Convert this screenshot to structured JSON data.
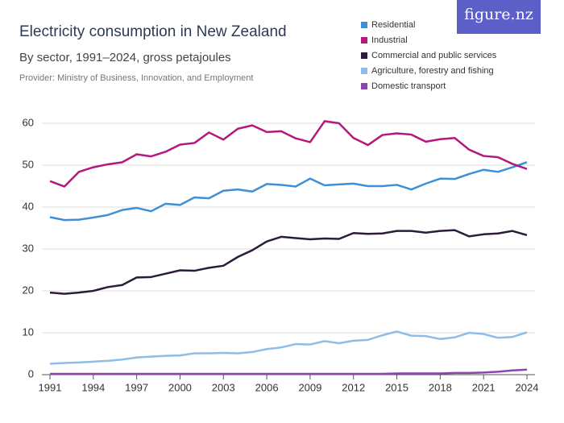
{
  "chart_data": {
    "type": "line",
    "title": "Electricity consumption in New Zealand",
    "subtitle": "By sector, 1991–2024, gross petajoules",
    "provider": "Provider: Ministry of Business, Innovation, and Employment",
    "logo": "figure.nz",
    "x": [
      1991,
      1992,
      1993,
      1994,
      1995,
      1996,
      1997,
      1998,
      1999,
      2000,
      2001,
      2002,
      2003,
      2004,
      2005,
      2006,
      2007,
      2008,
      2009,
      2010,
      2011,
      2012,
      2013,
      2014,
      2015,
      2016,
      2017,
      2018,
      2019,
      2020,
      2021,
      2022,
      2023,
      2024
    ],
    "xlim": [
      1991,
      2024
    ],
    "xticks": [
      1991,
      1994,
      1997,
      2000,
      2003,
      2006,
      2009,
      2012,
      2015,
      2018,
      2021,
      2024
    ],
    "ylim": [
      0,
      60
    ],
    "yticks": [
      0,
      10,
      20,
      30,
      40,
      50,
      60
    ],
    "grid": true,
    "legend": "top-right",
    "series": [
      {
        "name": "Residential",
        "color": "#3e8fd6",
        "values": [
          37.6,
          36.9,
          37.0,
          37.5,
          38.1,
          39.3,
          39.8,
          39.0,
          40.8,
          40.5,
          42.3,
          42.1,
          43.9,
          44.2,
          43.7,
          45.5,
          45.3,
          44.9,
          46.8,
          45.2,
          45.4,
          45.6,
          45.0,
          45.0,
          45.3,
          44.2,
          45.6,
          46.8,
          46.7,
          47.9,
          48.9,
          48.4,
          49.5,
          50.7
        ]
      },
      {
        "name": "Industrial",
        "color": "#b5177e",
        "values": [
          46.2,
          44.9,
          48.4,
          49.5,
          50.2,
          50.7,
          52.6,
          52.1,
          53.2,
          54.9,
          55.3,
          57.8,
          56.1,
          58.7,
          59.5,
          57.9,
          58.1,
          56.4,
          55.5,
          60.5,
          60.0,
          56.5,
          54.8,
          57.2,
          57.6,
          57.3,
          55.6,
          56.2,
          56.5,
          53.7,
          52.2,
          51.9,
          50.3,
          49.1
        ]
      },
      {
        "name": "Commercial and public services",
        "color": "#2d1b3a",
        "values": [
          19.6,
          19.3,
          19.6,
          20.0,
          20.9,
          21.4,
          23.2,
          23.3,
          24.1,
          24.9,
          24.8,
          25.5,
          26.0,
          28.1,
          29.7,
          31.8,
          32.9,
          32.6,
          32.3,
          32.5,
          32.4,
          33.8,
          33.6,
          33.7,
          34.3,
          34.3,
          33.9,
          34.3,
          34.5,
          33.0,
          33.5,
          33.7,
          34.3,
          33.3
        ]
      },
      {
        "name": "Agriculture, forestry and fishing",
        "color": "#8dbde8",
        "values": [
          2.6,
          2.8,
          2.9,
          3.1,
          3.3,
          3.6,
          4.1,
          4.3,
          4.5,
          4.6,
          5.1,
          5.1,
          5.2,
          5.1,
          5.4,
          6.1,
          6.5,
          7.3,
          7.2,
          8.0,
          7.5,
          8.1,
          8.3,
          9.4,
          10.3,
          9.3,
          9.2,
          8.5,
          8.9,
          10.0,
          9.7,
          8.8,
          9.0,
          10.1
        ]
      },
      {
        "name": "Domestic transport",
        "color": "#8d44b0",
        "values": [
          0.2,
          0.2,
          0.2,
          0.2,
          0.2,
          0.2,
          0.2,
          0.2,
          0.2,
          0.2,
          0.2,
          0.2,
          0.2,
          0.2,
          0.2,
          0.2,
          0.2,
          0.2,
          0.2,
          0.2,
          0.2,
          0.2,
          0.2,
          0.2,
          0.3,
          0.3,
          0.3,
          0.3,
          0.4,
          0.4,
          0.5,
          0.7,
          1.0,
          1.2
        ]
      }
    ]
  }
}
